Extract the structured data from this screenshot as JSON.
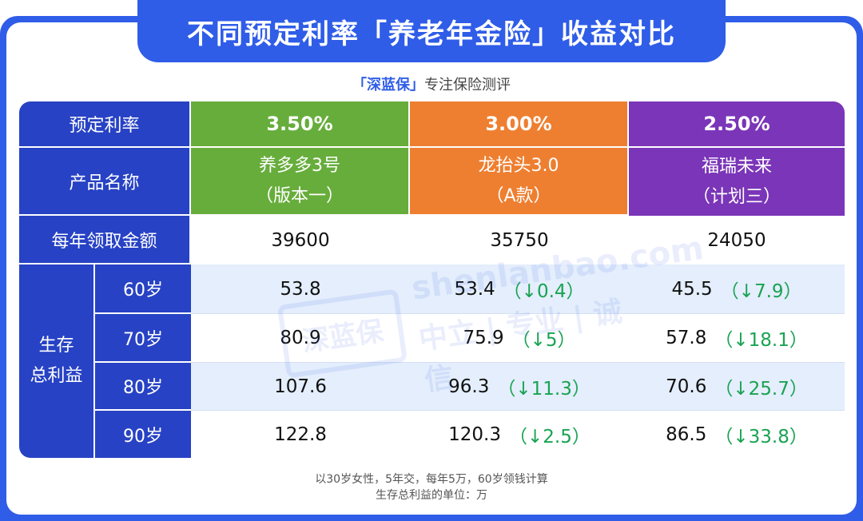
{
  "title": "不同预定利率「养老年金险」收益对比",
  "subtitle": {
    "brand": "「深蓝保」",
    "tagline": "专注保险测评"
  },
  "table": {
    "row_labels": {
      "rate": "预定利率",
      "product": "产品名称",
      "annual": "每年领取金额",
      "total_benefit": "生存\n总利益"
    },
    "colors": {
      "header": "#2742c4",
      "green": "#67ad3b",
      "orange": "#ee7f30",
      "purple": "#7a35b8",
      "decrease": "#19a352"
    },
    "columns": [
      {
        "rate": "3.50%",
        "product_line1": "养多多3号",
        "product_line2": "（版本一）",
        "annual": "39600"
      },
      {
        "rate": "3.00%",
        "product_line1": "龙抬头3.0",
        "product_line2": "（A款）",
        "annual": "35750"
      },
      {
        "rate": "2.50%",
        "product_line1": "福瑞未来",
        "product_line2": "（计划三）",
        "annual": "24050"
      }
    ],
    "age_rows": [
      {
        "age": "60岁",
        "values": [
          {
            "v": "53.8",
            "d": ""
          },
          {
            "v": "53.4",
            "d": "（↓0.4）"
          },
          {
            "v": "45.5",
            "d": "（↓7.9）"
          }
        ]
      },
      {
        "age": "70岁",
        "values": [
          {
            "v": "80.9",
            "d": ""
          },
          {
            "v": "75.9",
            "d": "（↓5）"
          },
          {
            "v": "57.8",
            "d": "（↓18.1）"
          }
        ]
      },
      {
        "age": "80岁",
        "values": [
          {
            "v": "107.6",
            "d": ""
          },
          {
            "v": "96.3",
            "d": "（↓11.3）"
          },
          {
            "v": "70.6",
            "d": "（↓25.7）"
          }
        ]
      },
      {
        "age": "90岁",
        "values": [
          {
            "v": "122.8",
            "d": ""
          },
          {
            "v": "120.3",
            "d": "（↓2.5）"
          },
          {
            "v": "86.5",
            "d": "（↓33.8）"
          }
        ]
      }
    ]
  },
  "watermark": {
    "logo": "深蓝保",
    "url": "shenlanbao.com",
    "slogan": "中立 | 专业 | 诚信"
  },
  "footnotes": [
    "以30岁女性，5年交，每年5万，60岁领钱计算",
    "生存总利益的单位：万"
  ]
}
